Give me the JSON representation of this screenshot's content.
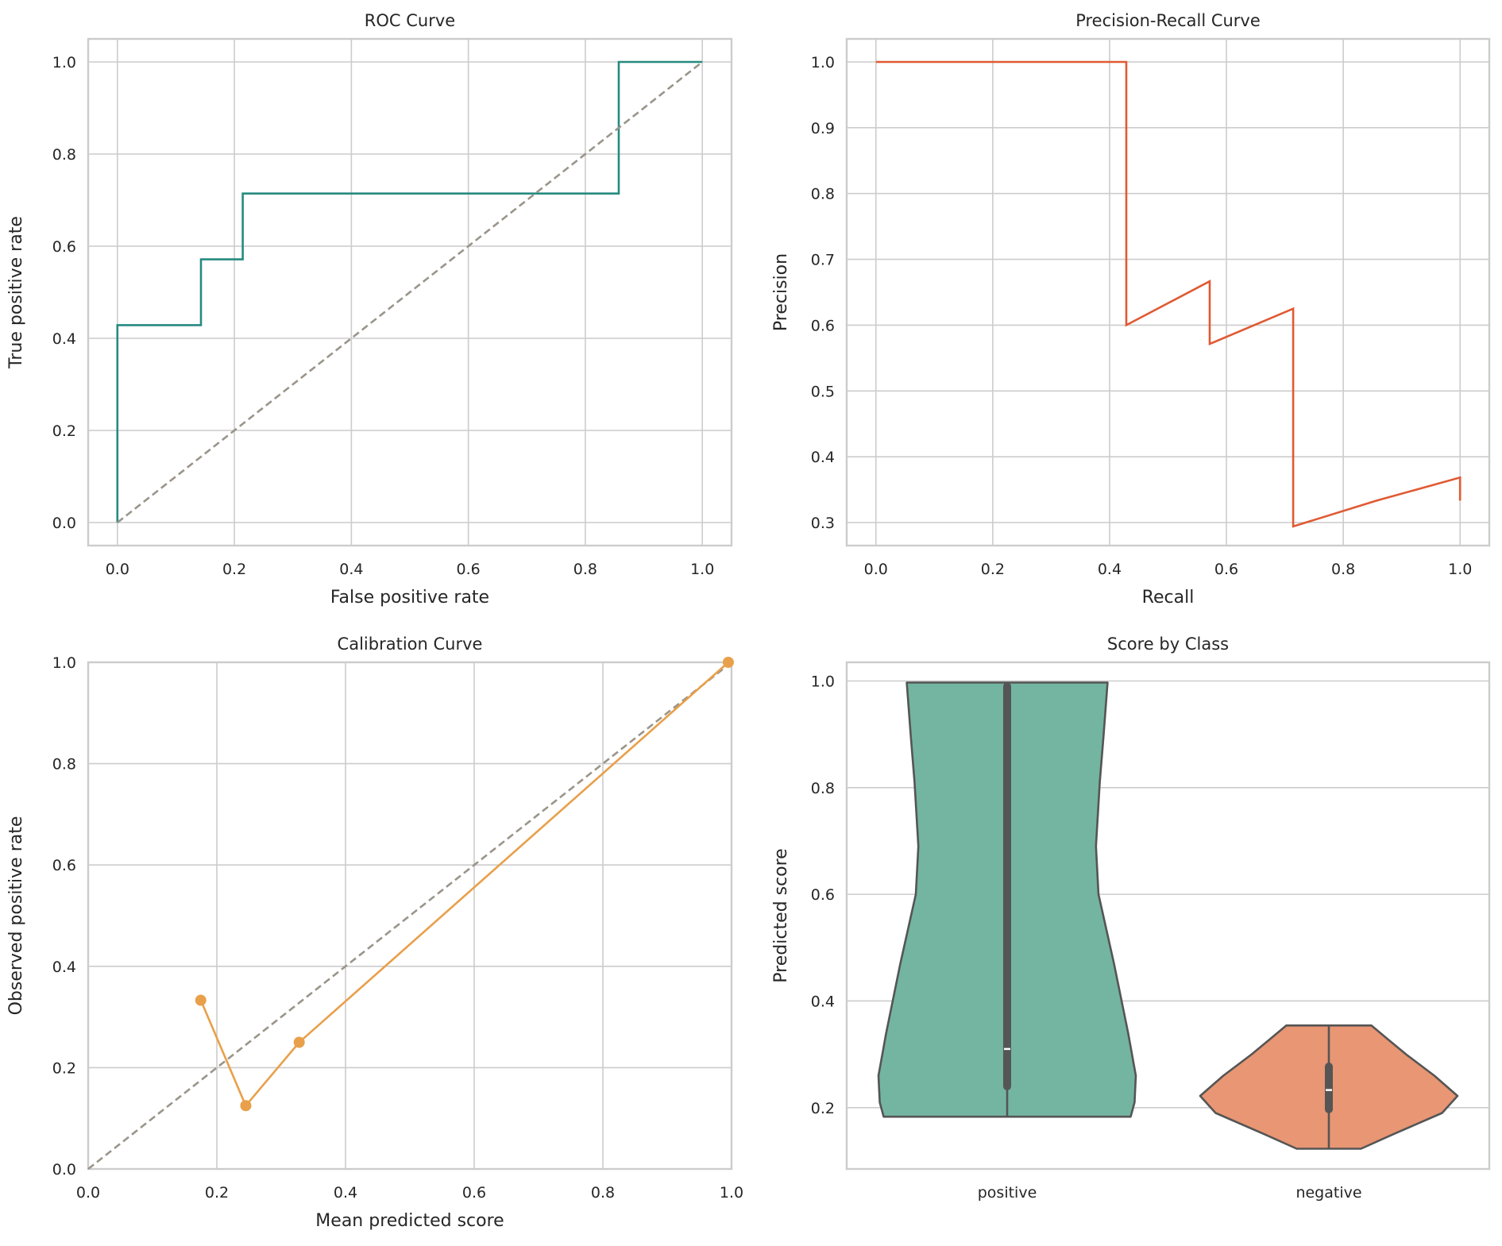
{
  "chart_data": [
    {
      "type": "line",
      "title": "ROC Curve",
      "xlabel": "False positive rate",
      "ylabel": "True positive rate",
      "xlim": [
        -0.05,
        1.05
      ],
      "ylim": [
        -0.05,
        1.05
      ],
      "xticks": [
        "0.0",
        "0.2",
        "0.4",
        "0.6",
        "0.8",
        "1.0"
      ],
      "yticks": [
        "0.0",
        "0.2",
        "0.4",
        "0.6",
        "0.8",
        "1.0"
      ],
      "grid": true,
      "series": [
        {
          "color": "#268a80",
          "style": "solid",
          "x": [
            0,
            0,
            0.1429,
            0.1429,
            0.2143,
            0.2143,
            0.8571,
            0.8571,
            1.0
          ],
          "y": [
            0,
            0.4286,
            0.4286,
            0.5714,
            0.5714,
            0.7143,
            0.7143,
            1.0,
            1.0
          ]
        },
        {
          "color": "#9a958a",
          "style": "dashed",
          "x": [
            0,
            1
          ],
          "y": [
            0,
            1
          ]
        }
      ]
    },
    {
      "type": "line",
      "title": "Precision-Recall Curve",
      "xlabel": "Recall",
      "ylabel": "Precision",
      "xlim": [
        -0.05,
        1.05
      ],
      "ylim": [
        0.265,
        1.035
      ],
      "xticks": [
        "0.0",
        "0.2",
        "0.4",
        "0.6",
        "0.8",
        "1.0"
      ],
      "yticks": [
        "0.3",
        "0.4",
        "0.5",
        "0.6",
        "0.7",
        "0.8",
        "0.9",
        "1.0"
      ],
      "grid": true,
      "series": [
        {
          "color": "#e05a33",
          "style": "solid",
          "x": [
            0,
            0.1429,
            0.2857,
            0.4286,
            0.4286,
            0.5714,
            0.5714,
            0.7143,
            0.7143,
            0.8571,
            1.0,
            1.0
          ],
          "y": [
            1.0,
            1.0,
            1.0,
            1.0,
            0.6,
            0.6667,
            0.5714,
            0.625,
            0.2941,
            0.3333,
            0.3684,
            0.3333
          ]
        }
      ]
    },
    {
      "type": "line",
      "title": "Calibration Curve",
      "xlabel": "Mean predicted score",
      "ylabel": "Observed positive rate",
      "xlim": [
        0,
        1
      ],
      "ylim": [
        0,
        1
      ],
      "xticks": [
        "0.0",
        "0.2",
        "0.4",
        "0.6",
        "0.8",
        "1.0"
      ],
      "yticks": [
        "0.0",
        "0.2",
        "0.4",
        "0.6",
        "0.8",
        "1.0"
      ],
      "grid": true,
      "series": [
        {
          "color": "#9a958a",
          "style": "dashed",
          "x": [
            0,
            1
          ],
          "y": [
            0,
            1
          ]
        },
        {
          "color": "#e8a04a",
          "style": "solid",
          "markers": true,
          "x": [
            0.175,
            0.245,
            0.328,
            0.995
          ],
          "y": [
            0.333,
            0.125,
            0.25,
            1.0
          ]
        }
      ]
    },
    {
      "type": "violin",
      "title": "Score by Class",
      "xlabel": "",
      "ylabel": "Predicted score",
      "ylim": [
        0.085,
        1.035
      ],
      "yticks": [
        "0.2",
        "0.4",
        "0.6",
        "0.8",
        "1.0"
      ],
      "grid": true,
      "categories": [
        "positive",
        "negative"
      ],
      "violins": [
        {
          "category": "positive",
          "color": "#73b5a1",
          "min": 0.183,
          "max": 0.997,
          "q1": 0.24,
          "median": 0.31,
          "q3": 0.99
        },
        {
          "category": "negative",
          "color": "#e89673",
          "min": 0.123,
          "max": 0.354,
          "q1": 0.197,
          "median": 0.233,
          "q3": 0.277
        }
      ]
    }
  ]
}
